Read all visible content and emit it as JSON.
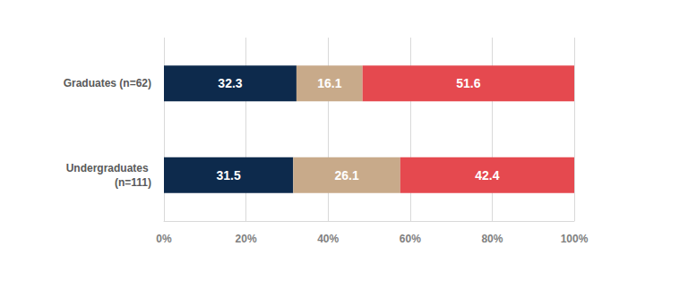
{
  "chart_data": {
    "type": "bar",
    "orientation": "horizontal",
    "stacked": true,
    "data_labels": true,
    "grid": true,
    "categories": [
      "Graduates (n=62)",
      "Undergraduates (n=111)"
    ],
    "series": [
      {
        "color": "#0d2a4c",
        "values": [
          32.3,
          31.5
        ]
      },
      {
        "color": "#c8aa8a",
        "values": [
          16.1,
          26.1
        ]
      },
      {
        "color": "#e5494f",
        "values": [
          51.6,
          42.4
        ]
      }
    ],
    "xlim": [
      0,
      100
    ],
    "xticks": [
      {
        "value": 0,
        "label": "0%"
      },
      {
        "value": 20,
        "label": "20%"
      },
      {
        "value": 40,
        "label": "40%"
      },
      {
        "value": 60,
        "label": "60%"
      },
      {
        "value": 80,
        "label": "80%"
      },
      {
        "value": 100,
        "label": "100%"
      }
    ]
  }
}
